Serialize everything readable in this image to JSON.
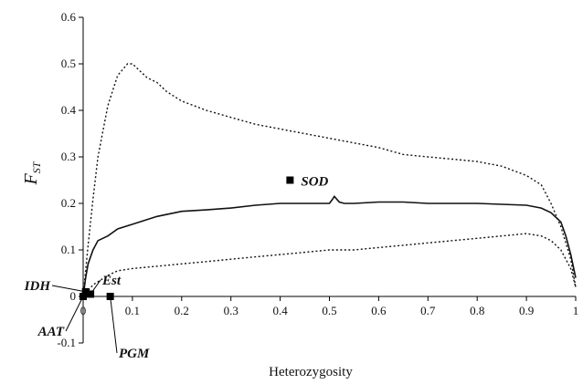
{
  "chart_data": {
    "type": "line",
    "xlabel": "Heterozygosity",
    "ylabel": {
      "main": "F",
      "sub": "ST"
    },
    "xlim": [
      0,
      1
    ],
    "ylim": [
      -0.1,
      0.6
    ],
    "x_ticks": [
      "0",
      "0.1",
      "0.2",
      "0.3",
      "0.4",
      "0.5",
      "0.6",
      "0.7",
      "0.8",
      "0.9",
      "1"
    ],
    "y_ticks": [
      "-0.1",
      "0",
      "0.1",
      "0.2",
      "0.3",
      "0.4",
      "0.5",
      "0.6"
    ],
    "grid": false,
    "legend": "none",
    "series": [
      {
        "style": "solid",
        "x": [
          0,
          0.005,
          0.01,
          0.02,
          0.03,
          0.05,
          0.07,
          0.1,
          0.15,
          0.2,
          0.25,
          0.3,
          0.35,
          0.4,
          0.45,
          0.5,
          0.505,
          0.51,
          0.52,
          0.53,
          0.55,
          0.6,
          0.65,
          0.7,
          0.75,
          0.8,
          0.85,
          0.9,
          0.93,
          0.95,
          0.97,
          0.98,
          0.99,
          1.0
        ],
        "y": [
          0,
          0.04,
          0.07,
          0.1,
          0.12,
          0.13,
          0.145,
          0.155,
          0.172,
          0.183,
          0.186,
          0.19,
          0.196,
          0.2,
          0.2,
          0.2,
          0.207,
          0.215,
          0.203,
          0.2,
          0.2,
          0.203,
          0.203,
          0.2,
          0.2,
          0.2,
          0.198,
          0.196,
          0.19,
          0.18,
          0.16,
          0.13,
          0.09,
          0.04
        ]
      },
      {
        "style": "dotted",
        "x": [
          0,
          0.01,
          0.02,
          0.03,
          0.05,
          0.07,
          0.09,
          0.1,
          0.11,
          0.13,
          0.15,
          0.17,
          0.2,
          0.25,
          0.3,
          0.35,
          0.4,
          0.45,
          0.5,
          0.55,
          0.6,
          0.65,
          0.7,
          0.75,
          0.8,
          0.85,
          0.9,
          0.93,
          0.95,
          0.97,
          0.99,
          1.0
        ],
        "y": [
          0,
          0.11,
          0.21,
          0.3,
          0.41,
          0.475,
          0.5,
          0.5,
          0.49,
          0.47,
          0.46,
          0.44,
          0.42,
          0.4,
          0.385,
          0.37,
          0.36,
          0.35,
          0.34,
          0.33,
          0.32,
          0.305,
          0.3,
          0.295,
          0.29,
          0.28,
          0.26,
          0.24,
          0.2,
          0.15,
          0.08,
          0.02
        ]
      },
      {
        "style": "dotted",
        "x": [
          0,
          0.02,
          0.05,
          0.07,
          0.1,
          0.15,
          0.2,
          0.25,
          0.3,
          0.35,
          0.4,
          0.45,
          0.5,
          0.55,
          0.6,
          0.65,
          0.7,
          0.75,
          0.8,
          0.85,
          0.9,
          0.93,
          0.95,
          0.97,
          0.99,
          1.0
        ],
        "y": [
          0,
          0.025,
          0.045,
          0.055,
          0.06,
          0.065,
          0.07,
          0.075,
          0.08,
          0.085,
          0.09,
          0.095,
          0.1,
          0.1,
          0.105,
          0.11,
          0.115,
          0.12,
          0.125,
          0.13,
          0.135,
          0.13,
          0.12,
          0.1,
          0.06,
          0.02
        ]
      }
    ],
    "points": [
      {
        "label": "SOD",
        "x": 0.42,
        "y": 0.25
      },
      {
        "label": "IDH",
        "x": 0.005,
        "y": 0.01
      },
      {
        "label": "Est",
        "x": 0.015,
        "y": 0.005
      },
      {
        "label": "AAT",
        "x": 0.0,
        "y": 0.0
      },
      {
        "label": "PGM",
        "x": 0.055,
        "y": 0.0
      }
    ]
  }
}
